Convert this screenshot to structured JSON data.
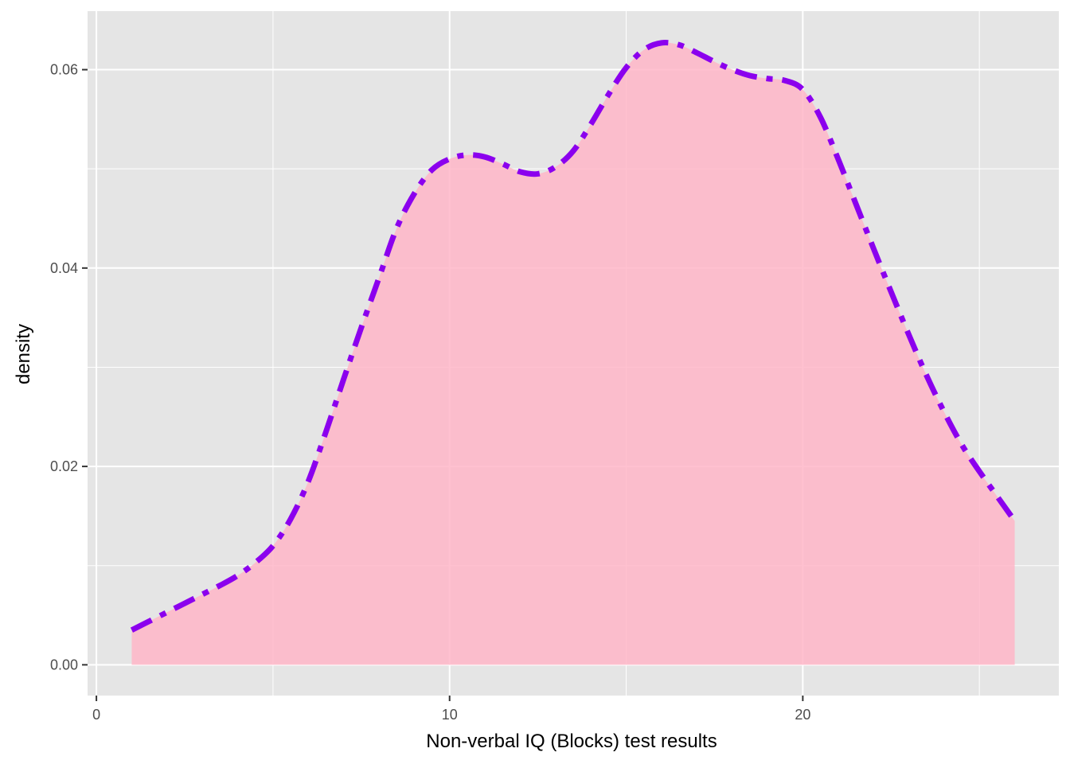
{
  "chart_data": {
    "type": "area",
    "title": "",
    "xlabel": "Non-verbal IQ (Blocks) test results",
    "ylabel": "density",
    "xlim": [
      -0.25,
      27.25
    ],
    "ylim": [
      -0.0031,
      0.0659
    ],
    "x_ticks": [
      0,
      10,
      20
    ],
    "x_tick_labels": [
      "0",
      "10",
      "20"
    ],
    "x_minor_ticks": [
      5,
      15,
      25
    ],
    "y_ticks": [
      0.0,
      0.02,
      0.04,
      0.06
    ],
    "y_tick_labels": [
      "0.00",
      "0.02",
      "0.04",
      "0.06"
    ],
    "y_minor_ticks": [
      0.01,
      0.03,
      0.05
    ],
    "grid": true,
    "legend": "none",
    "colors": {
      "panel_background": "#e5e5e5",
      "grid": "#ffffff",
      "fill": "#ffb6c8",
      "line": "#8b00ee",
      "axis_text": "#4d4d4d"
    },
    "series": [
      {
        "x": [
          1,
          1.5,
          2,
          2.5,
          3,
          3.5,
          4,
          4.5,
          5,
          5.5,
          6,
          6.5,
          7,
          7.5,
          8,
          8.5,
          9,
          9.5,
          10,
          10.5,
          11,
          11.5,
          12,
          12.5,
          13,
          13.5,
          14,
          14.5,
          15,
          15.5,
          16,
          16.5,
          17,
          17.5,
          18,
          18.5,
          19,
          19.5,
          20,
          20.5,
          21,
          21.5,
          22,
          22.5,
          23,
          23.5,
          24,
          24.5,
          25,
          25.5,
          26
        ],
        "y": [
          0.0035,
          0.0044,
          0.0053,
          0.0062,
          0.0071,
          0.008,
          0.009,
          0.0103,
          0.012,
          0.0147,
          0.0185,
          0.0235,
          0.0288,
          0.034,
          0.039,
          0.044,
          0.0475,
          0.0499,
          0.051,
          0.0514,
          0.0512,
          0.0505,
          0.0497,
          0.0495,
          0.0502,
          0.0518,
          0.0545,
          0.0575,
          0.0602,
          0.062,
          0.0627,
          0.0625,
          0.0617,
          0.0608,
          0.06,
          0.0594,
          0.0591,
          0.0589,
          0.058,
          0.0552,
          0.051,
          0.0465,
          0.042,
          0.0376,
          0.0333,
          0.0292,
          0.0255,
          0.0222,
          0.0195,
          0.017,
          0.0145
        ]
      }
    ]
  }
}
